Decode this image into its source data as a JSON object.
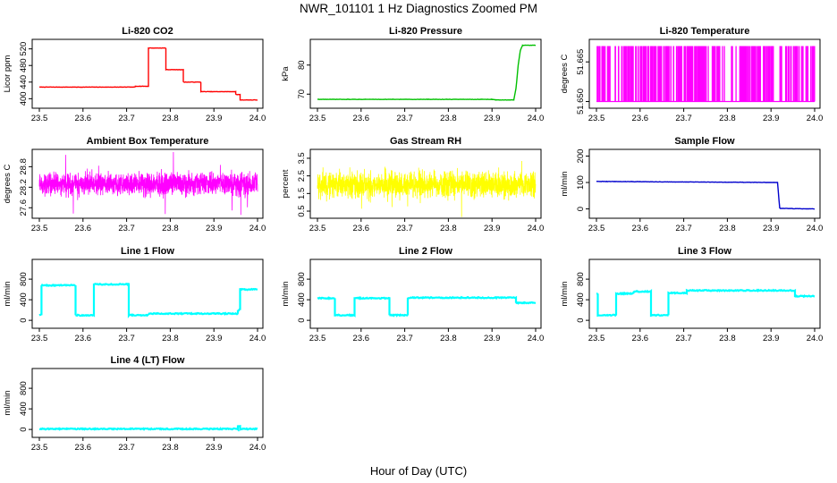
{
  "figure": {
    "title": "NWR_101101  1 Hz Diagnostics Zoomed PM",
    "xlabel": "Hour of Day (UTC)"
  },
  "chart_data": [
    {
      "type": "line",
      "title": "Li-820 CO2",
      "ylabel": "Licor ppm",
      "color": "#ff0000",
      "xlim": [
        23.5,
        24.0
      ],
      "ylim": [
        390,
        530
      ],
      "xticks": [
        "23.5",
        "23.6",
        "23.7",
        "23.8",
        "23.9",
        "24.0"
      ],
      "yticks": [
        400,
        440,
        480,
        520
      ],
      "series": [
        {
          "x": [
            23.5,
            23.72,
            23.72,
            23.75,
            23.75,
            23.79,
            23.79,
            23.83,
            23.83,
            23.87,
            23.87,
            23.95,
            23.95,
            23.96,
            23.96,
            24.0
          ],
          "y": [
            428,
            428,
            430,
            430,
            522,
            522,
            470,
            470,
            440,
            440,
            417,
            417,
            410,
            410,
            397,
            397
          ]
        }
      ]
    },
    {
      "type": "line",
      "title": "Li-820 Pressure",
      "ylabel": "kPa",
      "color": "#00c000",
      "xlim": [
        23.5,
        24.0
      ],
      "ylim": [
        67,
        87
      ],
      "xticks": [
        "23.5",
        "23.6",
        "23.7",
        "23.8",
        "23.9",
        "24.0"
      ],
      "yticks": [
        70,
        80
      ],
      "series": [
        {
          "x": [
            23.5,
            23.9,
            23.91,
            23.95,
            23.955,
            23.96,
            23.965,
            23.97,
            24.0
          ],
          "y": [
            68.2,
            68.2,
            68.0,
            68.0,
            72,
            80,
            85,
            86.8,
            86.8
          ]
        }
      ]
    },
    {
      "type": "line",
      "title": "Li-820 Temperature",
      "ylabel": "degrees C",
      "color": "#ff00ff",
      "xlim": [
        23.5,
        24.0
      ],
      "ylim": [
        51.6495,
        51.6715
      ],
      "xticks": [
        "23.5",
        "23.6",
        "23.7",
        "23.8",
        "23.9",
        "24.0"
      ],
      "yticks": [
        "51.650",
        "51.665"
      ],
      "note": "value flickers between 51.650 and 51.671"
    },
    {
      "type": "line",
      "title": "Ambient Box Temperature",
      "ylabel": "degrees C",
      "color": "#ff00ff",
      "xlim": [
        23.5,
        24.0
      ],
      "ylim": [
        27.45,
        29.15
      ],
      "xticks": [
        "23.5",
        "23.6",
        "23.7",
        "23.8",
        "23.9",
        "24.0"
      ],
      "yticks": [
        "27.6",
        "28.2",
        "28.8"
      ],
      "mean": 28.3,
      "noise": 0.2
    },
    {
      "type": "line",
      "title": "Gas Stream RH",
      "ylabel": "percent",
      "color": "#ffff00",
      "xlim": [
        23.5,
        24.0
      ],
      "ylim": [
        0.4,
        3.7
      ],
      "xticks": [
        "23.5",
        "23.6",
        "23.7",
        "23.8",
        "23.9",
        "24.0"
      ],
      "yticks": [
        "0.5",
        "1.5",
        "2.5",
        "3.5"
      ],
      "mean": 2.0,
      "noise": 0.45
    },
    {
      "type": "line",
      "title": "Sample Flow",
      "ylabel": "ml/min",
      "color": "#0000cd",
      "xlim": [
        23.5,
        24.0
      ],
      "ylim": [
        -15,
        205
      ],
      "xticks": [
        "23.5",
        "23.6",
        "23.7",
        "23.8",
        "23.9",
        "24.0"
      ],
      "yticks": [
        0,
        100,
        200
      ],
      "series": [
        {
          "x": [
            23.5,
            23.915,
            23.92,
            24.0
          ],
          "y": [
            104,
            100,
            2,
            0
          ]
        }
      ]
    },
    {
      "type": "line",
      "title": "Line 1 Flow",
      "ylabel": "ml/min",
      "color": "#00ffff",
      "xlim": [
        23.5,
        24.0
      ],
      "ylim": [
        -50,
        1080
      ],
      "xticks": [
        "23.5",
        "23.6",
        "23.7",
        "23.8",
        "23.9",
        "24.0"
      ],
      "yticks": [
        0,
        400,
        800
      ],
      "series": [
        {
          "x": [
            23.5,
            23.505,
            23.505,
            23.583,
            23.583,
            23.625,
            23.625,
            23.705,
            23.705,
            23.75,
            23.75,
            23.955,
            23.955,
            23.96,
            23.96,
            24.0
          ],
          "y": [
            100,
            100,
            680,
            680,
            100,
            100,
            700,
            700,
            100,
            100,
            130,
            130,
            200,
            200,
            600,
            600
          ]
        }
      ]
    },
    {
      "type": "line",
      "title": "Line 2 Flow",
      "ylabel": "ml/min",
      "color": "#00ffff",
      "xlim": [
        23.5,
        24.0
      ],
      "ylim": [
        -50,
        1080
      ],
      "xticks": [
        "23.5",
        "23.6",
        "23.7",
        "23.8",
        "23.9",
        "24.0"
      ],
      "yticks": [
        0,
        400,
        800
      ],
      "series": [
        {
          "x": [
            23.5,
            23.54,
            23.54,
            23.585,
            23.585,
            23.665,
            23.665,
            23.707,
            23.707,
            23.955,
            23.955,
            24.0
          ],
          "y": [
            430,
            430,
            100,
            100,
            430,
            430,
            100,
            100,
            440,
            440,
            340,
            340
          ]
        }
      ]
    },
    {
      "type": "line",
      "title": "Line 3 Flow",
      "ylabel": "ml/min",
      "color": "#00ffff",
      "xlim": [
        23.5,
        24.0
      ],
      "ylim": [
        -50,
        1080
      ],
      "xticks": [
        "23.5",
        "23.6",
        "23.7",
        "23.8",
        "23.9",
        "24.0"
      ],
      "yticks": [
        0,
        400,
        800
      ],
      "series": [
        {
          "x": [
            23.5,
            23.503,
            23.503,
            23.545,
            23.545,
            23.585,
            23.585,
            23.625,
            23.625,
            23.665,
            23.665,
            23.707,
            23.707,
            23.955,
            23.955,
            24.0
          ],
          "y": [
            520,
            520,
            100,
            100,
            520,
            520,
            560,
            560,
            100,
            100,
            530,
            530,
            580,
            580,
            470,
            470
          ]
        }
      ]
    },
    {
      "type": "line",
      "title": "Line 4 (LT) Flow",
      "ylabel": "ml/min",
      "color": "#00ffff",
      "xlim": [
        23.5,
        24.0
      ],
      "ylim": [
        -50,
        1080
      ],
      "xticks": [
        "23.5",
        "23.6",
        "23.7",
        "23.8",
        "23.9",
        "24.0"
      ],
      "yticks": [
        0,
        400,
        800
      ],
      "series": [
        {
          "x": [
            23.5,
            23.955,
            23.955,
            23.96,
            23.96,
            24.0
          ],
          "y": [
            10,
            10,
            60,
            60,
            10,
            10
          ]
        }
      ]
    }
  ]
}
